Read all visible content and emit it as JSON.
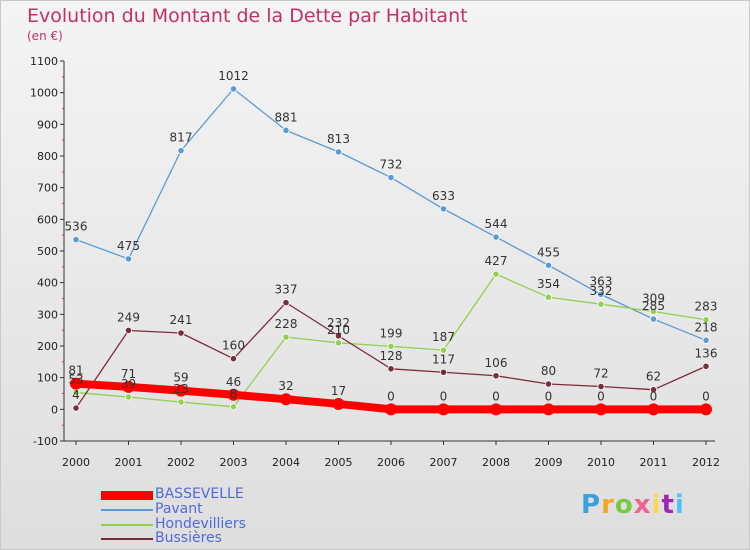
{
  "title": "Evolution du Montant de la Dette par Habitant",
  "subtitle": "(en €)",
  "logo": {
    "text": "Proxiti",
    "colors": [
      "#3aa0e0",
      "#f5a623",
      "#7ac943",
      "#f06292",
      "#ffd54f",
      "#9c27b0",
      "#4fc3f7"
    ]
  },
  "chart_data": {
    "type": "line",
    "x": [
      "2000",
      "2001",
      "2002",
      "2003",
      "2004",
      "2005",
      "2006",
      "2007",
      "2008",
      "2009",
      "2010",
      "2011",
      "2012"
    ],
    "ylim": [
      -100,
      1100
    ],
    "yticks": [
      "-100",
      "0",
      "100",
      "200",
      "300",
      "400",
      "500",
      "600",
      "700",
      "800",
      "900",
      "1000",
      "1100"
    ],
    "grid": false,
    "legend_position": "bottom-left",
    "series": [
      {
        "name": "BASSEVELLE",
        "color": "#ff0000",
        "values": [
          81,
          71,
          59,
          46,
          32,
          17,
          0,
          0,
          0,
          0,
          0,
          0,
          0
        ],
        "labels": [
          "81",
          "71",
          "59",
          "46",
          "32",
          "17",
          "0",
          "0",
          "0",
          "0",
          "0",
          "0",
          "0"
        ]
      },
      {
        "name": "Pavant",
        "color": "#5b9bd5",
        "values": [
          536,
          475,
          817,
          1012,
          881,
          813,
          732,
          633,
          544,
          455,
          363,
          285,
          218
        ],
        "labels": [
          "536",
          "475",
          "817",
          "1012",
          "881",
          "813",
          "732",
          "633",
          "544",
          "455",
          "363",
          "285",
          "218"
        ]
      },
      {
        "name": "Hondevilliers",
        "color": "#92d050",
        "values": [
          53,
          39,
          23,
          8,
          228,
          210,
          199,
          187,
          427,
          354,
          332,
          309,
          283
        ],
        "labels": [
          "53",
          "39",
          "23",
          "8",
          "228",
          "210",
          "199",
          "187",
          "427",
          "354",
          "332",
          "309",
          "283"
        ]
      },
      {
        "name": "Bussières",
        "color": "#7b2c3a",
        "values": [
          4,
          249,
          241,
          160,
          337,
          232,
          128,
          117,
          106,
          80,
          72,
          62,
          136
        ],
        "labels": [
          "4",
          "249",
          "241",
          "160",
          "337",
          "232",
          "128",
          "117",
          "106",
          "80",
          "72",
          "62",
          "136"
        ]
      }
    ]
  }
}
